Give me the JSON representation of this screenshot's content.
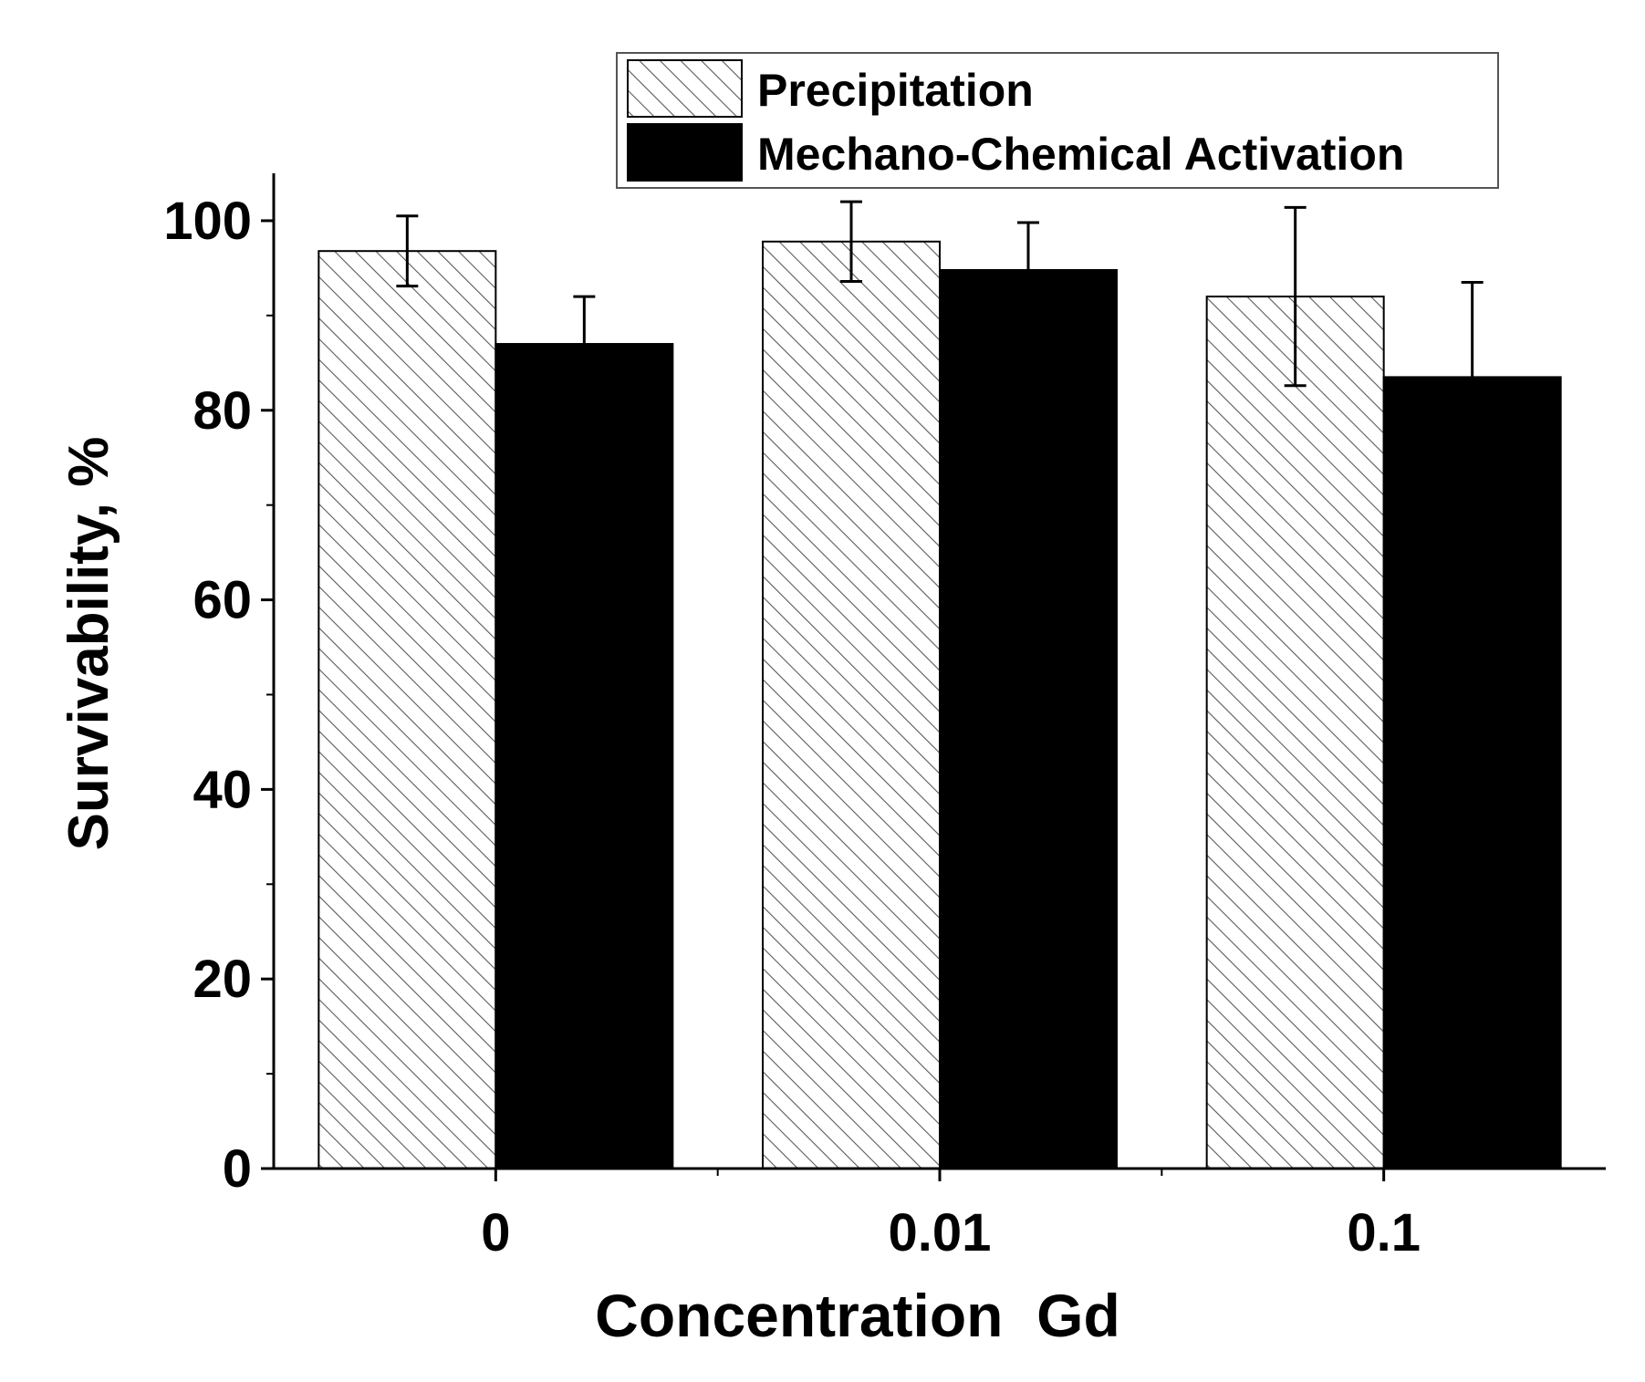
{
  "chart_data": {
    "type": "bar",
    "title": "",
    "xlabel": "Concentration  Gd",
    "ylabel": "Survivability, %",
    "categories": [
      "0",
      "0.01",
      "0.1"
    ],
    "ylim": [
      0,
      105
    ],
    "yticks": [
      0,
      20,
      40,
      60,
      80,
      100
    ],
    "grid": false,
    "legend_position": "top-right",
    "series": [
      {
        "name": "Precipitation",
        "values": [
          96.8,
          97.8,
          92.0
        ],
        "errors": [
          3.7,
          4.2,
          9.4
        ],
        "fill": "hatched",
        "color": "#ffffff",
        "pattern_color": "#555555"
      },
      {
        "name": "Mechano-Chemical Activation",
        "values": [
          87.0,
          94.8,
          83.5
        ],
        "errors": [
          5.0,
          5.0,
          10.0
        ],
        "fill": "solid",
        "color": "#000000"
      }
    ]
  }
}
